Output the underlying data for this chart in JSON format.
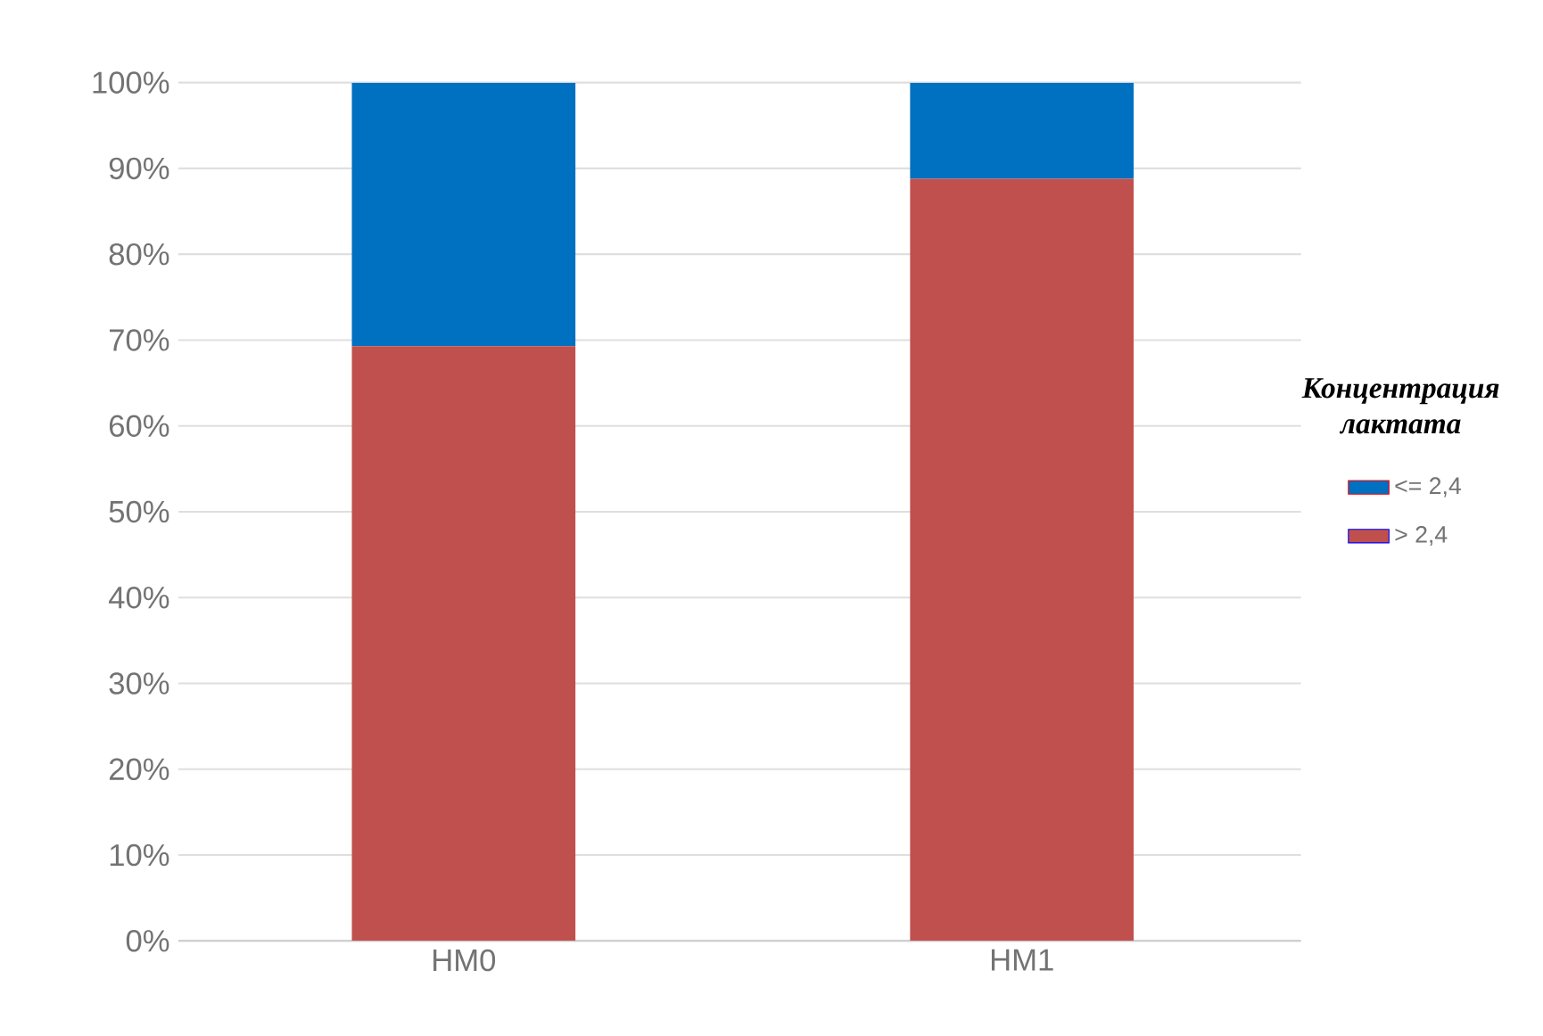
{
  "chart_data": {
    "type": "bar",
    "stacked": true,
    "legend_title": "Концентрация лактата",
    "categories": [
      "НМ0",
      "НМ1"
    ],
    "series": [
      {
        "name": "> 2,4",
        "color": "#c0504d",
        "values": [
          69.3,
          88.8
        ]
      },
      {
        "name": "<= 2,4",
        "color": "#0070c0",
        "values": [
          30.7,
          11.2
        ]
      }
    ],
    "ylim": [
      0,
      100
    ],
    "yticks": [
      {
        "value": 0,
        "label": "0%"
      },
      {
        "value": 10,
        "label": "10%"
      },
      {
        "value": 20,
        "label": "20%"
      },
      {
        "value": 30,
        "label": "30%"
      },
      {
        "value": 40,
        "label": "40%"
      },
      {
        "value": 50,
        "label": "50%"
      },
      {
        "value": 60,
        "label": "60%"
      },
      {
        "value": 70,
        "label": "70%"
      },
      {
        "value": 80,
        "label": "80%"
      },
      {
        "value": 90,
        "label": "90%"
      },
      {
        "value": 100,
        "label": "100%"
      }
    ],
    "grid": "y",
    "legend": "right"
  }
}
